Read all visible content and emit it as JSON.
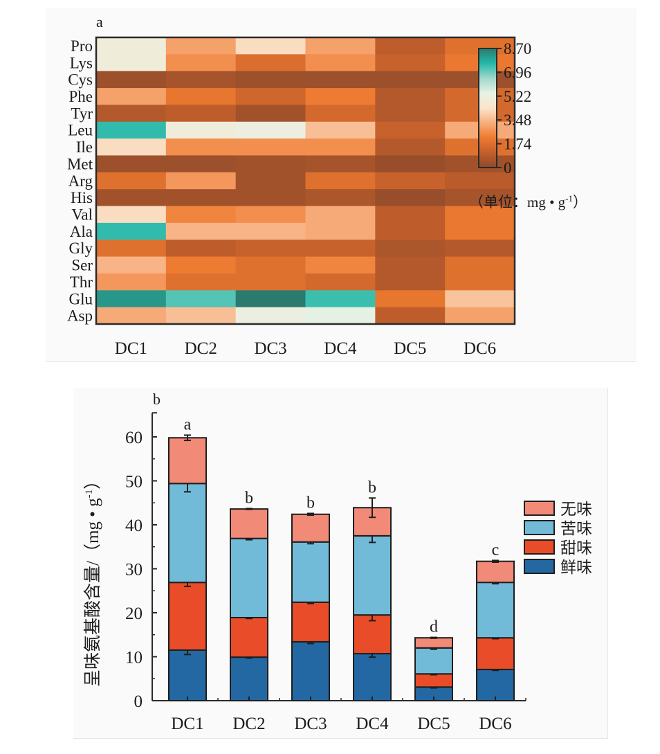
{
  "chart_data": [
    {
      "type": "heatmap",
      "panel_label": "a",
      "rows": [
        "Pro",
        "Lys",
        "Cys",
        "Phe",
        "Tyr",
        "Leu",
        "Ile",
        "Met",
        "Arg",
        "His",
        "Val",
        "Ala",
        "Gly",
        "Ser",
        "Thr",
        "Glu",
        "Asp"
      ],
      "columns": [
        "DC1",
        "DC2",
        "DC3",
        "DC4",
        "DC5",
        "DC6"
      ],
      "values": [
        [
          5.0,
          3.0,
          4.2,
          3.0,
          1.0,
          1.8
        ],
        [
          5.0,
          2.6,
          1.7,
          2.6,
          1.2,
          2.1
        ],
        [
          0.3,
          0.5,
          0.3,
          0.3,
          0.3,
          0.3
        ],
        [
          3.0,
          2.0,
          1.4,
          2.2,
          0.8,
          1.5
        ],
        [
          0.8,
          1.0,
          0.4,
          1.5,
          0.8,
          1.5
        ],
        [
          7.5,
          5.0,
          5.2,
          3.6,
          1.2,
          3.2
        ],
        [
          4.2,
          2.6,
          2.6,
          2.6,
          0.8,
          1.8
        ],
        [
          0.3,
          0.3,
          0.4,
          0.5,
          0.2,
          0.4
        ],
        [
          1.8,
          2.8,
          0.4,
          1.8,
          1.2,
          0.9
        ],
        [
          0.4,
          0.4,
          0.4,
          0.6,
          0.2,
          0.5
        ],
        [
          4.2,
          2.4,
          2.6,
          3.2,
          1.0,
          2.1
        ],
        [
          7.5,
          3.4,
          3.4,
          3.2,
          1.0,
          2.1
        ],
        [
          1.8,
          1.0,
          1.2,
          1.2,
          0.6,
          0.8
        ],
        [
          3.4,
          2.2,
          1.8,
          2.4,
          0.8,
          1.8
        ],
        [
          2.8,
          1.8,
          1.8,
          1.5,
          0.8,
          1.8
        ],
        [
          8.2,
          7.2,
          8.7,
          7.4,
          2.0,
          3.7
        ],
        [
          3.2,
          3.6,
          5.2,
          5.5,
          1.0,
          3.0
        ]
      ],
      "colorbar": {
        "ticks": [
          "8.70",
          "6.96",
          "5.22",
          "3.48",
          "1.74",
          "0"
        ],
        "range": [
          0,
          8.7
        ],
        "unit_label": "（单位：mg • g",
        "unit_sup": "-1",
        "unit_close": "）",
        "colors": [
          "#8e4a2b",
          "#c25f2b",
          "#ee7a30",
          "#f7ad7c",
          "#fbe4cc",
          "#e8f2e4",
          "#a0d8cc",
          "#24b8a8",
          "#2a7a70"
        ]
      }
    },
    {
      "type": "bar",
      "stacked": true,
      "panel_label": "b",
      "categories": [
        "DC1",
        "DC2",
        "DC3",
        "DC4",
        "DC5",
        "DC6"
      ],
      "series": [
        {
          "name": "鲜味",
          "color": "#2368a2",
          "values": [
            11.5,
            9.9,
            13.4,
            10.7,
            3.1,
            7.1
          ],
          "errors": [
            1.0,
            0.2,
            0.4,
            0.8,
            0.2,
            0.2
          ]
        },
        {
          "name": "甜味",
          "color": "#e84c28",
          "values": [
            15.4,
            9.0,
            9.0,
            8.8,
            3.0,
            7.2
          ],
          "errors": [
            0.9,
            0.2,
            0.3,
            1.3,
            0.2,
            0.2
          ]
        },
        {
          "name": "苦味",
          "color": "#72bbd8",
          "values": [
            22.5,
            18.0,
            13.7,
            18.0,
            5.9,
            12.6
          ],
          "errors": [
            1.9,
            0.3,
            0.4,
            1.5,
            0.3,
            0.3
          ]
        },
        {
          "name": "无味",
          "color": "#f28a78",
          "values": [
            10.4,
            6.7,
            6.3,
            6.4,
            2.3,
            4.8
          ],
          "errors": [
            0.6,
            0.1,
            0.2,
            2.2,
            0.1,
            0.2
          ]
        }
      ],
      "significance": [
        "a",
        "b",
        "b",
        "b",
        "d",
        "c"
      ],
      "ylabel": "呈味氨基酸含量/（mg • g",
      "ylabel_sup": "-1",
      "ylabel_close": "）",
      "yticks": [
        "0",
        "10",
        "20",
        "30",
        "40",
        "50",
        "60"
      ],
      "ylim": [
        0,
        65
      ],
      "legend_order": [
        "无味",
        "苦味",
        "甜味",
        "鲜味"
      ],
      "legend_position": "right"
    }
  ]
}
